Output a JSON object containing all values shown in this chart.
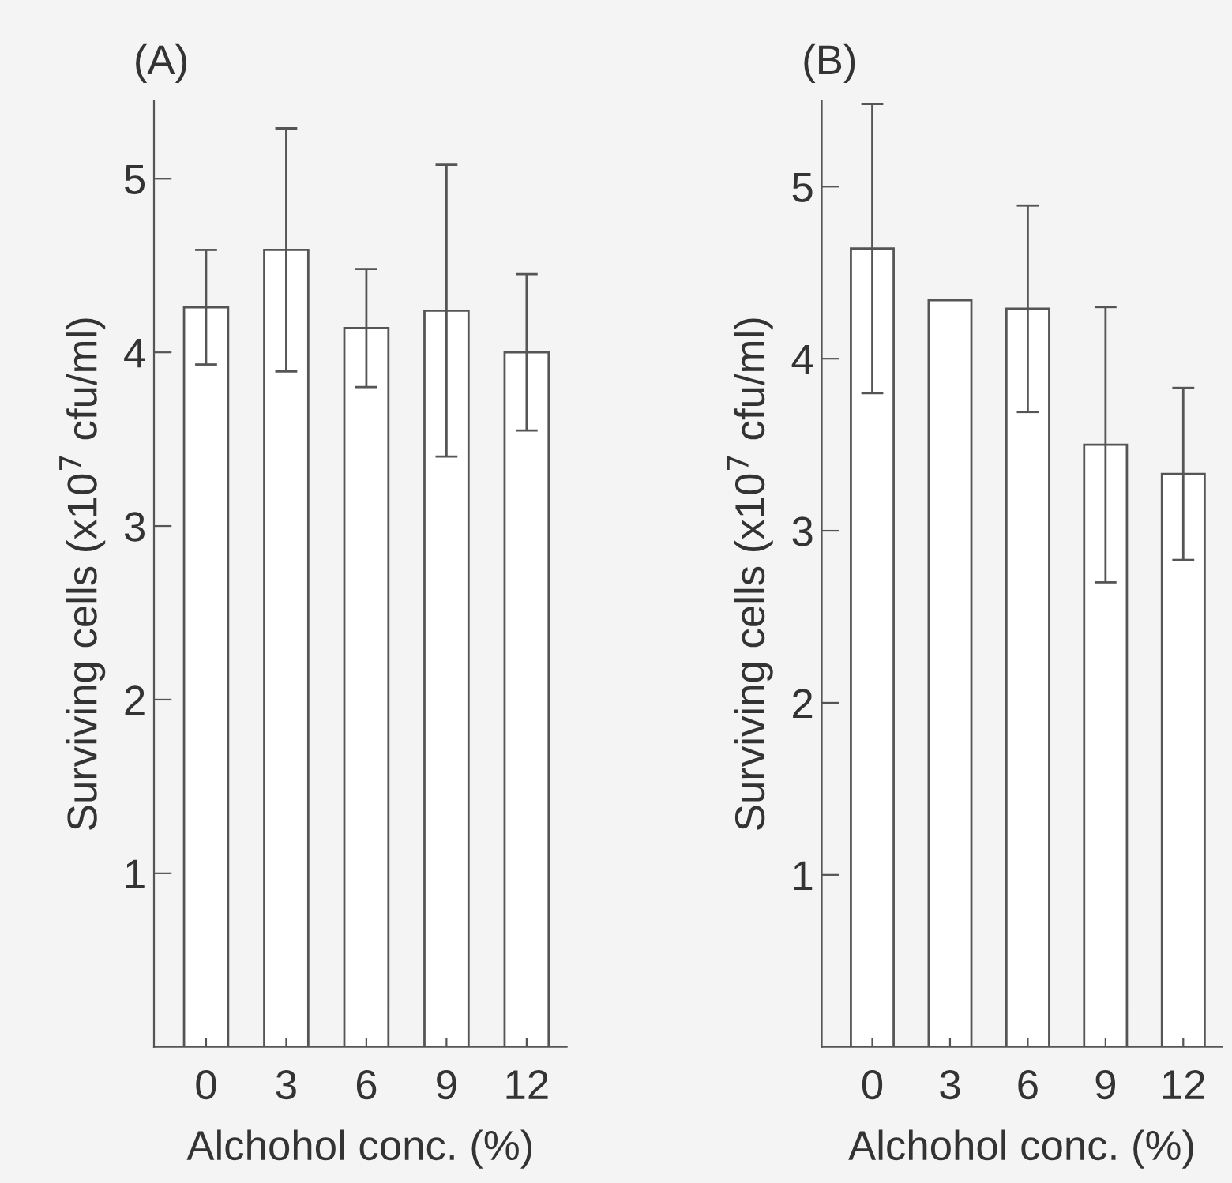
{
  "chart_data": [
    {
      "type": "bar",
      "title": "(A)",
      "xlabel": "Alchohol conc. (%)",
      "ylabel": "Surviving cells (x10$^{7}$ cfu/ml)",
      "categories": [
        "0",
        "3",
        "6",
        "9",
        "12"
      ],
      "series": [
        {
          "color": "#ffffff",
          "values": [
            4.26,
            4.59,
            4.14,
            4.24,
            4.0
          ],
          "errors": [
            0.33,
            0.7,
            0.34,
            0.84,
            0.45
          ]
        }
      ],
      "ylim": [
        0,
        5.45
      ],
      "yticks": [
        1,
        2,
        3,
        4,
        5
      ],
      "grid": false,
      "legend": false
    },
    {
      "type": "bar",
      "title": "(B)",
      "xlabel": "Alchohol conc. (%)",
      "ylabel": "Surviving cells (x10$^{7}$ cfu/ml)",
      "categories": [
        "0",
        "3",
        "6",
        "9",
        "12"
      ],
      "series": [
        {
          "color": "#ffffff",
          "values": [
            4.64,
            4.34,
            4.29,
            3.5,
            3.33
          ],
          "errors": [
            0.84,
            null,
            0.6,
            0.8,
            0.5
          ]
        }
      ],
      "ylim": [
        0,
        5.5
      ],
      "yticks": [
        1,
        2,
        3,
        4,
        5
      ],
      "grid": false,
      "legend": false
    }
  ]
}
